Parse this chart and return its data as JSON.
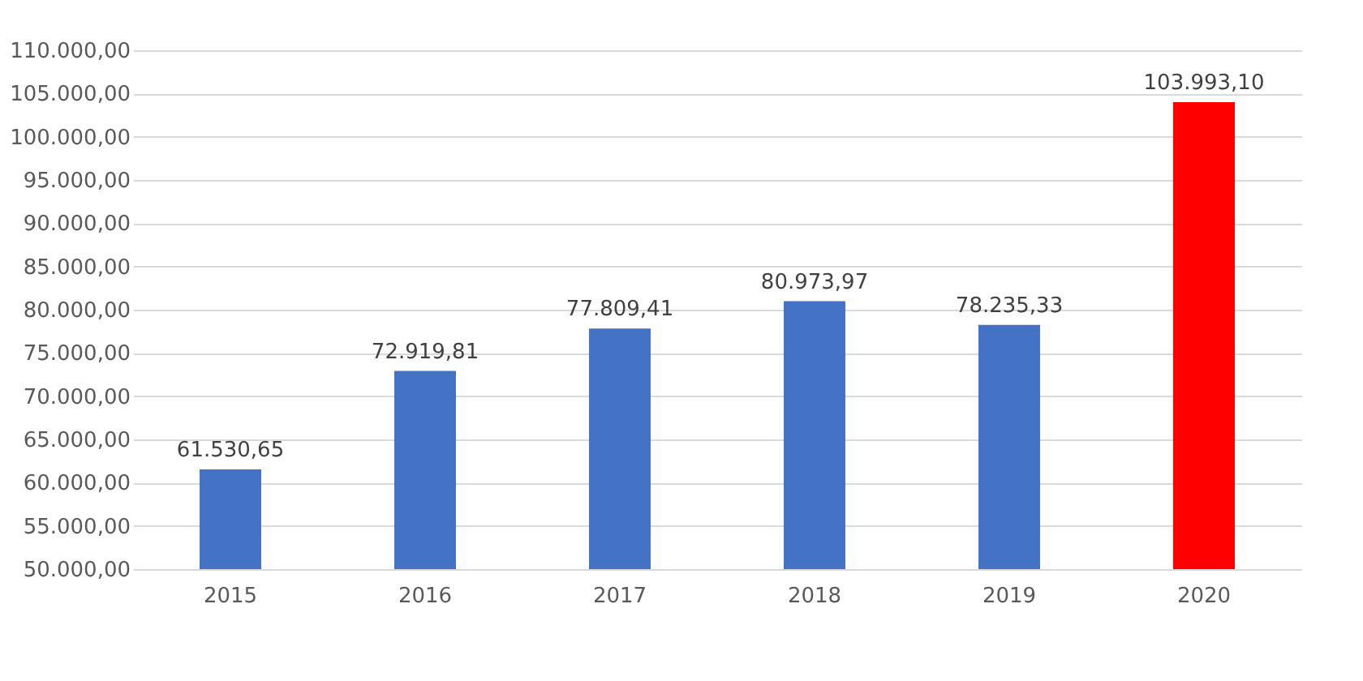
{
  "chart_data": {
    "type": "bar",
    "categories": [
      "2015",
      "2016",
      "2017",
      "2018",
      "2019",
      "2020"
    ],
    "values": [
      61530.65,
      72919.81,
      77809.41,
      80973.97,
      78235.33,
      103993.1
    ],
    "colors": [
      "#4472c4",
      "#4472c4",
      "#4472c4",
      "#4472c4",
      "#4472c4",
      "#ff0000"
    ],
    "value_labels": [
      "61.530,65",
      "72.919,81",
      "77.809,41",
      "80.973,97",
      "78.235,33",
      "103.993,10"
    ],
    "ylim": [
      50000,
      110000
    ],
    "yticks": [
      {
        "value": 50000,
        "label": "50.000,00"
      },
      {
        "value": 55000,
        "label": "55.000,00"
      },
      {
        "value": 60000,
        "label": "60.000,00"
      },
      {
        "value": 65000,
        "label": "65.000,00"
      },
      {
        "value": 70000,
        "label": "70.000,00"
      },
      {
        "value": 75000,
        "label": "75.000,00"
      },
      {
        "value": 80000,
        "label": "80.000,00"
      },
      {
        "value": 85000,
        "label": "85.000,00"
      },
      {
        "value": 90000,
        "label": "90.000,00"
      },
      {
        "value": 95000,
        "label": "95.000,00"
      },
      {
        "value": 100000,
        "label": "100.000,00"
      },
      {
        "value": 105000,
        "label": "105.000,00"
      },
      {
        "value": 110000,
        "label": "110.000,00"
      }
    ],
    "grid": "y"
  }
}
